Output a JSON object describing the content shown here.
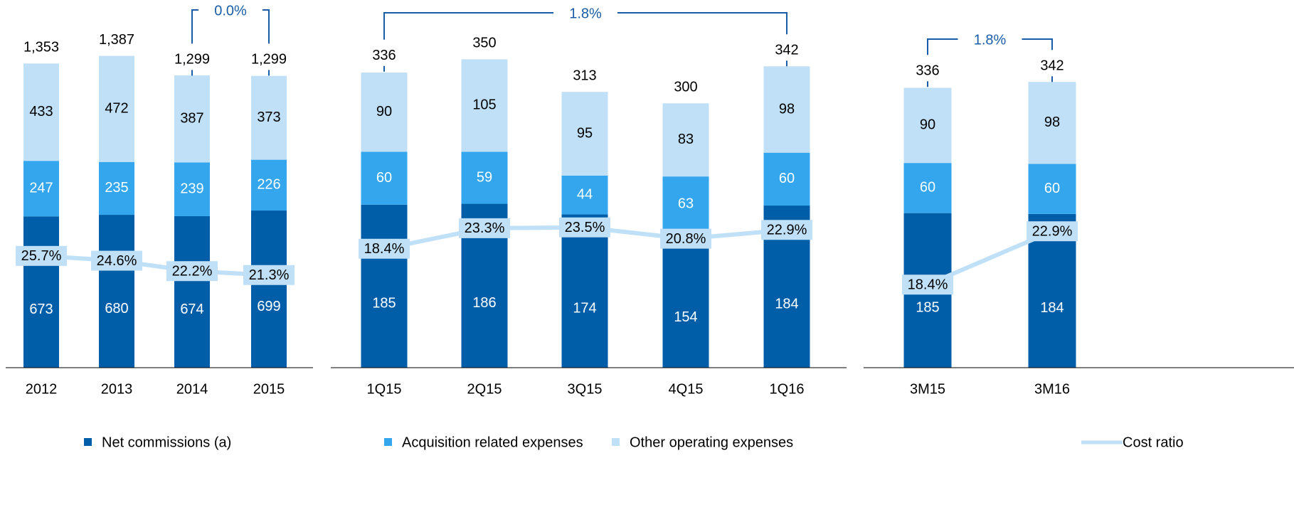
{
  "chart_data": [
    {
      "type": "bar",
      "categories": [
        "2012",
        "2013",
        "2014",
        "2015"
      ],
      "series": [
        {
          "name": "Net commissions (a)",
          "color": "#005ea8",
          "values": [
            673,
            680,
            674,
            699
          ]
        },
        {
          "name": "Acquisition related expenses",
          "color": "#33a6ee",
          "values": [
            247,
            235,
            239,
            226
          ]
        },
        {
          "name": "Other operating expenses",
          "color": "#bfe0f7",
          "values": [
            433,
            472,
            387,
            373
          ]
        }
      ],
      "totals": [
        1353,
        1387,
        1299,
        1299
      ],
      "totals_labels": [
        "1,353",
        "1,387",
        "1,299",
        "1,299"
      ],
      "line": {
        "name": "Cost ratio",
        "color": "#bfe0f7",
        "axis": "y2",
        "values": [
          25.7,
          24.6,
          22.2,
          21.3
        ],
        "value_labels": [
          "25.7%",
          "24.6%",
          "22.2%",
          "21.3%"
        ]
      },
      "annotation": "0.0%",
      "ylim": [
        0,
        1509
      ],
      "y2lim": [
        0,
        78
      ]
    },
    {
      "type": "bar",
      "categories": [
        "1Q15",
        "2Q15",
        "3Q15",
        "4Q15",
        "1Q16"
      ],
      "series": [
        {
          "name": "Net commissions (a)",
          "color": "#005ea8",
          "values": [
            185,
            186,
            174,
            154,
            184
          ]
        },
        {
          "name": "Acquisition related expenses",
          "color": "#33a6ee",
          "values": [
            60,
            59,
            44,
            63,
            60
          ]
        },
        {
          "name": "Other operating expenses",
          "color": "#bfe0f7",
          "values": [
            90,
            105,
            95,
            83,
            98
          ]
        }
      ],
      "totals": [
        336,
        350,
        313,
        300,
        342
      ],
      "line": {
        "name": "Cost ratio",
        "color": "#bfe0f7",
        "axis": "y2",
        "values": [
          18.4,
          23.3,
          23.5,
          20.8,
          22.9
        ],
        "value_labels": [
          "18.4%",
          "23.3%",
          "23.5%",
          "20.8%",
          "22.9%"
        ]
      },
      "annotation": "1.8%",
      "ylim": [
        0,
        385
      ],
      "y2lim": [
        -10,
        71
      ]
    },
    {
      "type": "bar",
      "categories": [
        "3M15",
        "3M16"
      ],
      "series": [
        {
          "name": "Net commissions (a)",
          "color": "#005ea8",
          "values": [
            185,
            184
          ]
        },
        {
          "name": "Acquisition related expenses",
          "color": "#33a6ee",
          "values": [
            60,
            60
          ]
        },
        {
          "name": "Other operating expenses",
          "color": "#bfe0f7",
          "values": [
            90,
            98
          ]
        }
      ],
      "totals": [
        336,
        342
      ],
      "line": {
        "name": "Cost ratio",
        "color": "#bfe0f7",
        "axis": "y2",
        "values": [
          18.4,
          22.9
        ],
        "value_labels": [
          "18.4%",
          "22.9%"
        ]
      },
      "annotation": "1.8%",
      "ylim": [
        0,
        406
      ],
      "y2lim": [
        11.4,
        40
      ]
    }
  ]
}
